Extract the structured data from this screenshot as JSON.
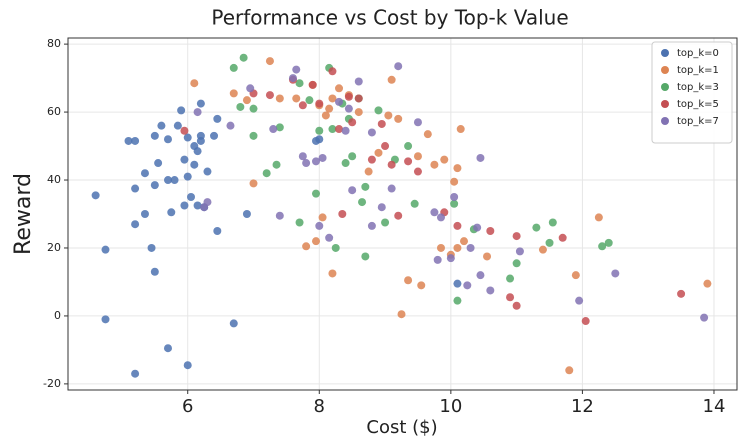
{
  "chart_data": {
    "type": "scatter",
    "title": "Performance vs Cost by Top-k Value",
    "xlabel": "Cost ($)",
    "ylabel": "Reward",
    "xlim": [
      4.18,
      14.35
    ],
    "ylim": [
      -21.8,
      81.8
    ],
    "xticks": [
      6,
      8,
      10,
      12,
      14
    ],
    "yticks": [
      -20,
      0,
      20,
      40,
      60,
      80
    ],
    "grid": true,
    "legend": "upper right",
    "series": [
      {
        "name": "top_k=0",
        "color": "#4c72b0",
        "x": [
          4.6,
          4.75,
          4.75,
          5.1,
          5.2,
          5.2,
          5.2,
          5.2,
          5.35,
          5.35,
          5.45,
          5.5,
          5.5,
          5.5,
          5.55,
          5.6,
          5.7,
          5.7,
          5.7,
          5.75,
          5.8,
          5.85,
          5.9,
          5.95,
          5.95,
          6.0,
          6.0,
          6.0,
          6.05,
          6.1,
          6.1,
          6.15,
          6.15,
          6.2,
          6.2,
          6.2,
          6.25,
          6.3,
          6.4,
          6.45,
          6.45,
          6.7,
          6.9,
          7.95,
          10.1,
          8.0
        ],
        "values": [
          35.5,
          19.5,
          -1,
          51.5,
          51.5,
          37.5,
          27,
          -17,
          42,
          30,
          20,
          53,
          38.5,
          13,
          45,
          56,
          52,
          40,
          -9.5,
          30.5,
          40,
          56,
          60.5,
          46,
          32.5,
          52.5,
          41,
          -14.5,
          35,
          50,
          44.5,
          48.5,
          32.5,
          62.5,
          53,
          51.5,
          32,
          42.5,
          53,
          58,
          25,
          -2.2,
          30,
          51.5,
          9.5,
          52
        ]
      },
      {
        "name": "top_k=1",
        "color": "#dd8452",
        "x": [
          6.1,
          6.7,
          6.9,
          7.0,
          7.25,
          7.4,
          7.65,
          7.8,
          7.9,
          7.95,
          8.0,
          8.05,
          8.1,
          8.15,
          8.2,
          8.2,
          8.3,
          8.45,
          8.6,
          8.75,
          8.9,
          9.05,
          9.1,
          9.2,
          9.25,
          9.35,
          9.5,
          9.55,
          9.65,
          9.75,
          9.85,
          9.9,
          10.0,
          10.05,
          10.1,
          10.1,
          10.15,
          10.2,
          10.55,
          11.4,
          11.8,
          11.9,
          12.25,
          13.9
        ],
        "values": [
          68.5,
          65.5,
          63.5,
          39,
          75,
          64,
          64,
          20.5,
          68,
          22,
          62,
          29,
          59,
          61,
          64,
          12.5,
          67,
          65,
          60,
          42.5,
          48,
          59,
          69.5,
          58,
          0.5,
          10.5,
          47,
          9,
          53.5,
          44.5,
          20,
          46,
          18,
          39.5,
          43.5,
          20,
          55,
          22,
          17.5,
          19.5,
          -16,
          12,
          29,
          9.5
        ]
      },
      {
        "name": "top_k=3",
        "color": "#55a868",
        "x": [
          6.7,
          6.8,
          6.85,
          7.0,
          7.0,
          7.2,
          7.35,
          7.4,
          7.7,
          7.7,
          7.85,
          7.95,
          8.0,
          8.15,
          8.2,
          8.25,
          8.35,
          8.4,
          8.45,
          8.5,
          8.6,
          8.65,
          8.7,
          8.7,
          8.9,
          9.0,
          9.15,
          9.35,
          9.45,
          10.05,
          10.1,
          10.35,
          10.9,
          11.0,
          11.3,
          11.55,
          11.5,
          12.3,
          12.4
        ],
        "values": [
          73,
          61.5,
          76,
          53,
          61,
          42,
          44.5,
          55.5,
          68.5,
          27.5,
          63.5,
          36,
          54.5,
          73,
          55,
          20,
          62.5,
          45,
          58,
          47,
          64,
          33.5,
          38,
          17.5,
          60.5,
          27.5,
          46,
          50,
          33,
          33,
          4.5,
          25.5,
          11,
          15.5,
          26,
          27.5,
          21.5,
          20.5,
          21.5
        ]
      },
      {
        "name": "top_k=5",
        "color": "#c44e52",
        "x": [
          5.95,
          7.0,
          7.25,
          7.6,
          7.75,
          7.9,
          8.0,
          8.2,
          8.3,
          8.35,
          8.45,
          8.5,
          8.6,
          8.8,
          8.95,
          9.0,
          9.1,
          9.2,
          9.35,
          9.5,
          9.9,
          10.1,
          10.6,
          10.9,
          11.0,
          11.0,
          11.7,
          12.05,
          13.5
        ],
        "values": [
          54.5,
          65.5,
          65,
          69.5,
          62,
          68,
          62.5,
          72,
          55,
          30,
          64.5,
          57,
          64,
          46,
          56.5,
          50,
          44.5,
          29.5,
          45.5,
          42.5,
          30.5,
          26.5,
          25,
          5.5,
          23.5,
          3,
          23,
          -1.5,
          6.5
        ]
      },
      {
        "name": "top_k=7",
        "color": "#8172b3",
        "x": [
          6.15,
          6.3,
          6.25,
          6.65,
          6.95,
          7.3,
          7.4,
          7.6,
          7.65,
          7.75,
          7.8,
          7.95,
          8.0,
          8.05,
          8.15,
          8.3,
          8.4,
          8.45,
          8.5,
          8.6,
          8.8,
          8.8,
          8.95,
          9.1,
          9.2,
          9.5,
          9.75,
          9.8,
          9.85,
          10.0,
          10.05,
          10.25,
          10.3,
          10.4,
          10.45,
          10.45,
          10.6,
          11.05,
          11.95,
          12.5,
          13.85
        ],
        "values": [
          60,
          33.5,
          32,
          56,
          67,
          55,
          29.5,
          70,
          72.5,
          47,
          45,
          45.5,
          26.5,
          46.5,
          23,
          63,
          54.5,
          61,
          37,
          69,
          54,
          26.5,
          32,
          37.5,
          73.5,
          57,
          30.5,
          16.5,
          29,
          17,
          35,
          9,
          20,
          26,
          46.5,
          12,
          7.5,
          19,
          4.5,
          12.5,
          -0.5
        ]
      }
    ]
  }
}
